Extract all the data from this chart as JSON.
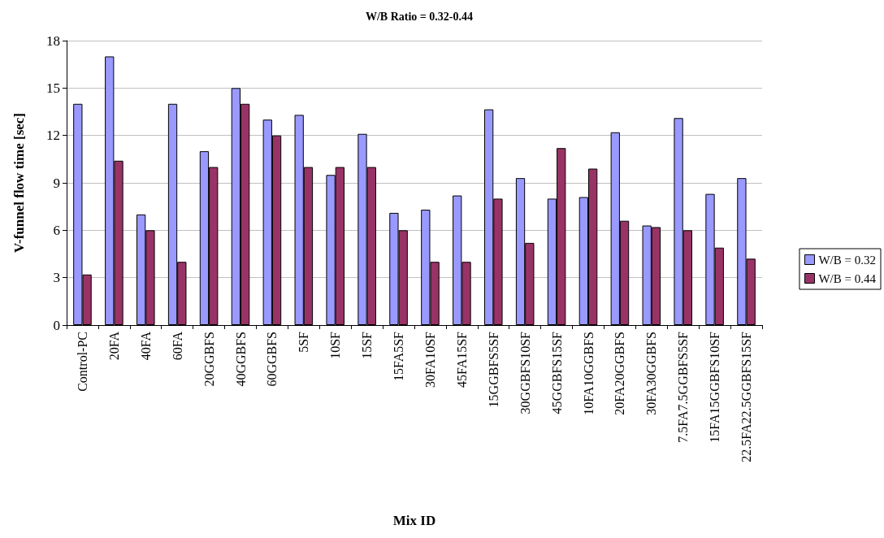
{
  "chart_data": {
    "type": "bar",
    "title": "W/B Ratio = 0.32-0.44",
    "xlabel": "Mix ID",
    "ylabel": "V-funnel flow time [sec]",
    "categories": [
      "Control-PC",
      "20FA",
      "40FA",
      "60FA",
      "20GGBFS",
      "40GGBFS",
      "60GGBFS",
      "5SF",
      "10SF",
      "15SF",
      "15FA5SF",
      "30FA10SF",
      "45FA15SF",
      "15GGBFS5SF",
      "30GGBFS10SF",
      "45GGBFS15SF",
      "10FA10GGBFS",
      "20FA20GGBFS",
      "30FA30GGBFS",
      "7.5FA7.5GGBFS5SF",
      "15FA15GGBFS10SF",
      "22.5FA22.5GGBFS15SF"
    ],
    "series": [
      {
        "name": "W/B = 0.32",
        "color": "#9999ff",
        "values": [
          14,
          17,
          7,
          14,
          11,
          15,
          13,
          13.3,
          9.5,
          12.1,
          7.1,
          7.3,
          8.2,
          13.65,
          9.3,
          8,
          8.1,
          12.2,
          6.3,
          13.1,
          8.3,
          9.3
        ]
      },
      {
        "name": "W/B = 0.44",
        "color": "#993366",
        "values": [
          3.2,
          10.4,
          6,
          4,
          10,
          14,
          12,
          10,
          10,
          10,
          6,
          4,
          4,
          8,
          5.2,
          11.2,
          9.9,
          6.6,
          6.2,
          6,
          4.9,
          4.2
        ]
      }
    ],
    "ylim": [
      0,
      18
    ],
    "yticks": [
      0,
      3,
      6,
      9,
      12,
      15,
      18
    ],
    "grid": "y",
    "legend": "right"
  }
}
